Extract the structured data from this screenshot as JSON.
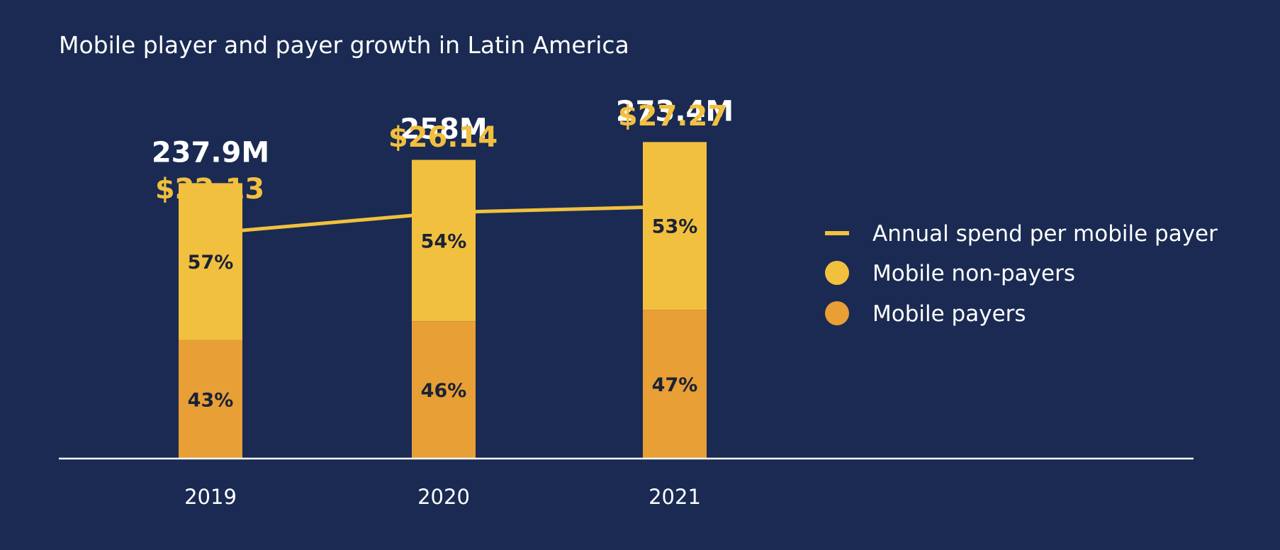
{
  "chart_data": {
    "type": "bar",
    "title": "Mobile player and payer growth in Latin America",
    "categories": [
      "2019",
      "2020",
      "2021"
    ],
    "totals": [
      {
        "value": 237.9,
        "label": "237.9M"
      },
      {
        "value": 258,
        "label": "258M"
      },
      {
        "value": 273.4,
        "label": "273.4M"
      }
    ],
    "series": [
      {
        "name": "Mobile payers",
        "kind": "stacked-bar",
        "values": [
          43,
          46,
          47
        ],
        "labels": [
          "43%",
          "46%",
          "47%"
        ],
        "color": "#e89f36"
      },
      {
        "name": "Mobile non-payers",
        "kind": "stacked-bar",
        "values": [
          57,
          54,
          53
        ],
        "labels": [
          "57%",
          "54%",
          "53%"
        ],
        "color": "#f2c03f"
      },
      {
        "name": "Annual spend per mobile payer",
        "kind": "line",
        "values": [
          22.13,
          26.14,
          27.27
        ],
        "labels": [
          "$22.13",
          "$26.14",
          "$27.27"
        ],
        "color": "#f2c03f"
      }
    ],
    "legend": {
      "position": "right",
      "items": [
        {
          "label": "Annual spend per mobile payer",
          "marker": "line",
          "color": "#f2c03f"
        },
        {
          "label": "Mobile non-payers",
          "marker": "dot",
          "color": "#f2c03f"
        },
        {
          "label": "Mobile payers",
          "marker": "dot",
          "color": "#e89f36"
        }
      ]
    },
    "grid": false,
    "colors": {
      "background": "#1a2a52",
      "axis": "#ffffff",
      "text": "#ffffff",
      "bar_text": "#1b2235"
    }
  }
}
